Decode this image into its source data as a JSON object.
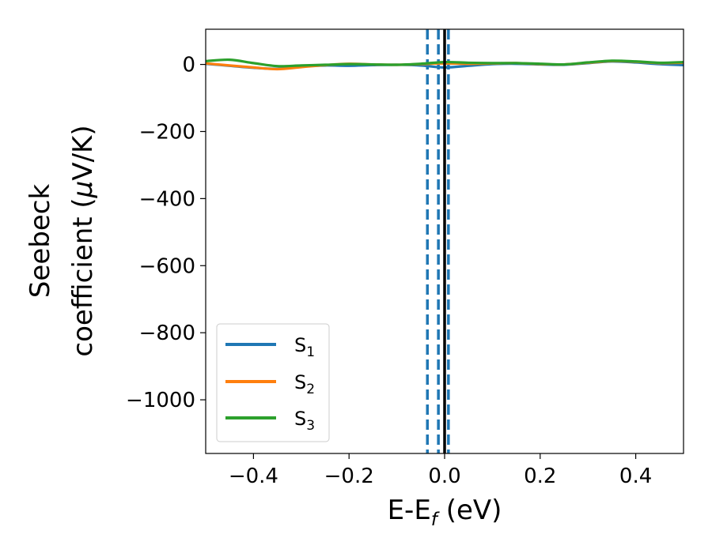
{
  "chart_data": {
    "type": "line",
    "xlabel": "E-E",
    "xlabel_sub": "f",
    "xlabel_unit": " (eV)",
    "ylabel_line1": "Seebeck",
    "ylabel_line2_pre": "coefficient  (",
    "ylabel_line2_mu": "μ",
    "ylabel_line2_post": "V/K)",
    "xlim": [
      -0.5,
      0.5
    ],
    "ylim": [
      -1160,
      105
    ],
    "xticks": [
      -0.4,
      -0.2,
      0.0,
      0.2,
      0.4
    ],
    "xtick_labels": [
      "−0.4",
      "−0.2",
      "0.0",
      "0.2",
      "0.4"
    ],
    "yticks": [
      0,
      -200,
      -400,
      -600,
      -800,
      -1000
    ],
    "ytick_labels": [
      "0",
      "−200",
      "−400",
      "−600",
      "−800",
      "−1000"
    ],
    "legend_position": "lower left",
    "vertical_lines": [
      {
        "x": -0.036,
        "style": "dashed",
        "color": "#1f77b4"
      },
      {
        "x": -0.013,
        "style": "dashed",
        "color": "#1f77b4"
      },
      {
        "x": 0.008,
        "style": "dashed",
        "color": "#1f77b4"
      },
      {
        "x": 0.0,
        "style": "solid",
        "color": "#000000"
      }
    ],
    "series": [
      {
        "name": "S",
        "name_sub": "1",
        "color": "#1f77b4",
        "x": [
          -0.5,
          -0.45,
          -0.4,
          -0.35,
          -0.3,
          -0.25,
          -0.2,
          -0.15,
          -0.1,
          -0.05,
          0.0,
          0.05,
          0.1,
          0.15,
          0.2,
          0.25,
          0.3,
          0.35,
          0.4,
          0.45,
          0.5
        ],
        "y": [
          2,
          -4,
          -10,
          -13,
          -6,
          -3,
          -4,
          -2,
          -1,
          -3,
          -9,
          -4,
          1,
          2,
          0,
          -1,
          4,
          9,
          6,
          1,
          -2
        ]
      },
      {
        "name": "S",
        "name_sub": "2",
        "color": "#ff7f0e",
        "x": [
          -0.5,
          -0.45,
          -0.4,
          -0.35,
          -0.3,
          -0.25,
          -0.2,
          -0.15,
          -0.1,
          -0.05,
          0.0,
          0.05,
          0.1,
          0.15,
          0.2,
          0.25,
          0.3,
          0.35,
          0.4,
          0.45,
          0.5
        ],
        "y": [
          3,
          -3,
          -9,
          -14,
          -8,
          -2,
          2,
          0,
          -1,
          1,
          3,
          2,
          3,
          4,
          1,
          0,
          5,
          10,
          8,
          4,
          5
        ]
      },
      {
        "name": "S",
        "name_sub": "3",
        "color": "#2ca02c",
        "x": [
          -0.5,
          -0.45,
          -0.4,
          -0.35,
          -0.3,
          -0.25,
          -0.2,
          -0.15,
          -0.1,
          -0.05,
          0.0,
          0.05,
          0.1,
          0.15,
          0.2,
          0.25,
          0.3,
          0.35,
          0.4,
          0.45,
          0.5
        ],
        "y": [
          10,
          14,
          4,
          -5,
          -3,
          -1,
          1,
          0,
          -1,
          2,
          7,
          5,
          4,
          4,
          2,
          0,
          6,
          11,
          9,
          5,
          7
        ]
      }
    ]
  }
}
